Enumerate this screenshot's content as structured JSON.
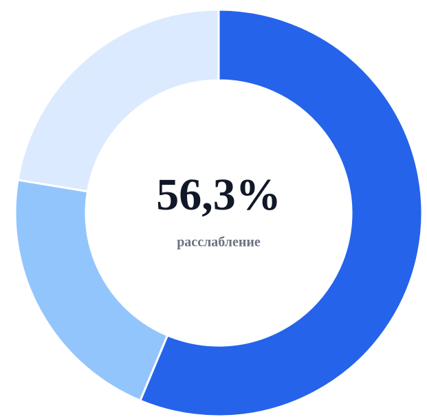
{
  "chart_data": {
    "type": "donut",
    "categories": [
      "расслабление",
      null,
      null
    ],
    "values": [
      56.3,
      21.3,
      22.4
    ],
    "value_labels": [
      "56,3%",
      null,
      null
    ],
    "colors": [
      "#2563eb",
      "#93c5fd",
      "#dbeafe"
    ]
  }
}
